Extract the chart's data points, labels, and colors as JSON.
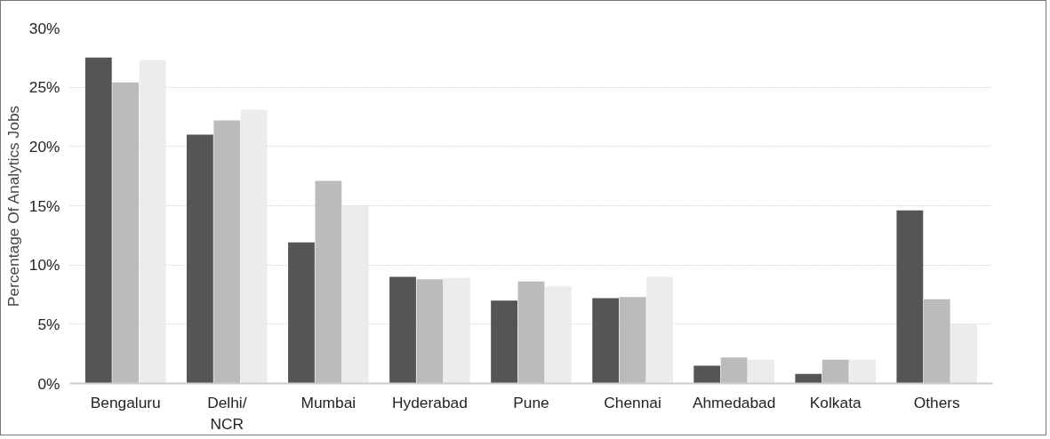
{
  "chart_data": {
    "type": "bar",
    "ylabel": "Percentage Of Analytics Jobs",
    "categories": [
      "Bengaluru",
      "Delhi/\nNCR",
      "Mumbai",
      "Hyderabad",
      "Pune",
      "Chennai",
      "Ahmedabad",
      "Kolkata",
      "Others"
    ],
    "series": [
      {
        "color": "#555555",
        "values": [
          27.5,
          21.0,
          11.9,
          9.0,
          7.0,
          7.2,
          1.5,
          0.8,
          14.6
        ]
      },
      {
        "color": "#bbbbbb",
        "values": [
          25.4,
          22.2,
          17.1,
          8.8,
          8.6,
          7.3,
          2.2,
          2.0,
          7.1
        ]
      },
      {
        "color": "#ececec",
        "values": [
          27.3,
          23.1,
          15.0,
          8.9,
          8.2,
          9.0,
          2.0,
          2.0,
          5.0
        ]
      }
    ],
    "ylim": [
      0,
      30
    ],
    "yticks": [
      {
        "value": 0,
        "label": "0%"
      },
      {
        "value": 5,
        "label": "5%"
      },
      {
        "value": 10,
        "label": "10%"
      },
      {
        "value": 15,
        "label": "15%"
      },
      {
        "value": 20,
        "label": "20%"
      },
      {
        "value": 25,
        "label": "25%"
      },
      {
        "value": 30,
        "label": "30%"
      }
    ],
    "grid": "y"
  }
}
